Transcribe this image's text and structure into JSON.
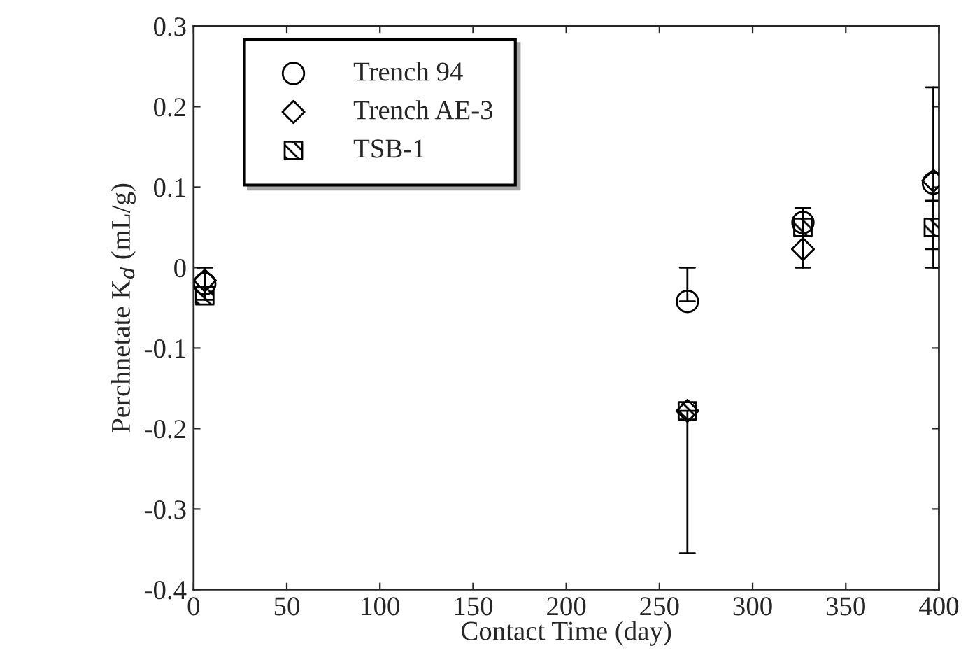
{
  "chart_data": {
    "type": "scatter",
    "xlabel": "Contact Time (day)",
    "ylabel": "Perchnetate K$_{d}$ (mL/g)",
    "x": [
      6,
      265,
      327,
      397
    ],
    "series": [
      {
        "name": "Trench 94",
        "color": "#000000",
        "marker": "circle",
        "values": [
          -0.02,
          -0.042,
          0.056,
          0.105
        ],
        "errors": [
          [
            -0.04,
            0.0
          ],
          [
            -0.042,
            0.0
          ],
          [
            0.0,
            0.074
          ],
          null
        ]
      },
      {
        "name": "Trench AE-3",
        "color": "#000000",
        "marker": "diamond",
        "values": [
          -0.016,
          -0.178,
          0.023,
          0.108
        ],
        "errors": [
          null,
          [
            -0.355,
            -0.178
          ],
          null,
          [
            0.0,
            0.224
          ]
        ]
      },
      {
        "name": "TSB-1",
        "color": "#000000",
        "marker": "square",
        "values": [
          -0.035,
          -0.178,
          0.05,
          0.05
        ],
        "errors": [
          null,
          null,
          null,
          [
            0.023,
            0.083
          ]
        ]
      }
    ],
    "xlim": [
      0,
      400
    ],
    "xticks": [
      0,
      50,
      100,
      150,
      200,
      250,
      300,
      350,
      400
    ],
    "ylim": [
      -0.4,
      0.3
    ],
    "yticks": [
      {
        "value": -0.4,
        "label": "-0.4"
      },
      {
        "value": -0.3,
        "label": "-0.3"
      },
      {
        "value": -0.2,
        "label": "-0.2"
      },
      {
        "value": -0.1,
        "label": "-0.1"
      },
      0,
      0.1,
      0.2,
      0.3
    ],
    "grid": false,
    "legend": "top left"
  }
}
